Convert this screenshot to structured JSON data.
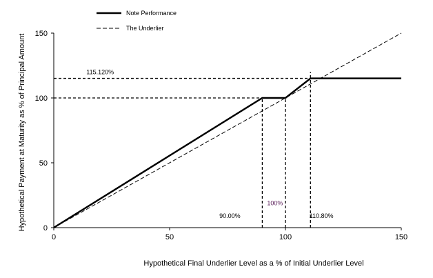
{
  "chart_data": {
    "type": "line",
    "xlabel": "Hypothetical Final Underlier Level as a % of Initial Underlier Level",
    "ylabel": "Hypothetical Payment at Maturity as % of Principal Amount",
    "xlim": [
      0,
      150
    ],
    "ylim": [
      0,
      150
    ],
    "x_ticks": [
      "0",
      "50",
      "100",
      "150"
    ],
    "y_ticks": [
      "0",
      "50",
      "100",
      "150"
    ],
    "grid": false,
    "legend_position": "top-left",
    "series": [
      {
        "name": "Note Performance",
        "style": "solid-thick",
        "color": "#000000",
        "points": [
          [
            0,
            0
          ],
          [
            90,
            100
          ],
          [
            100,
            100
          ],
          [
            110.8,
            115.12
          ],
          [
            150,
            115.12
          ]
        ]
      },
      {
        "name": "The Underlier",
        "style": "dashed",
        "color": "#000000",
        "points": [
          [
            0,
            0
          ],
          [
            150,
            150
          ]
        ]
      }
    ],
    "reference_lines": [
      {
        "kind": "horizontal",
        "y": 115.12,
        "x_from": 0,
        "x_to": 110.8
      },
      {
        "kind": "horizontal",
        "y": 100,
        "x_from": 0,
        "x_to": 90
      },
      {
        "kind": "vertical",
        "x": 90,
        "y_from": 0,
        "y_to": 100
      },
      {
        "kind": "vertical",
        "x": 100,
        "y_from": 0,
        "y_to": 100
      },
      {
        "kind": "vertical",
        "x": 110.8,
        "y_from": 0,
        "y_to": 120
      }
    ],
    "annotations": [
      {
        "text": "115.120%",
        "x": 20,
        "y": 120,
        "color": "#000000"
      },
      {
        "text": "90.00%",
        "x": 76,
        "y": 9,
        "color": "#000000"
      },
      {
        "text": "100%",
        "x": 95.5,
        "y": 19,
        "color": "#5a1e5a"
      },
      {
        "text": "110.80%",
        "x": 115.5,
        "y": 9,
        "color": "#000000"
      }
    ]
  }
}
